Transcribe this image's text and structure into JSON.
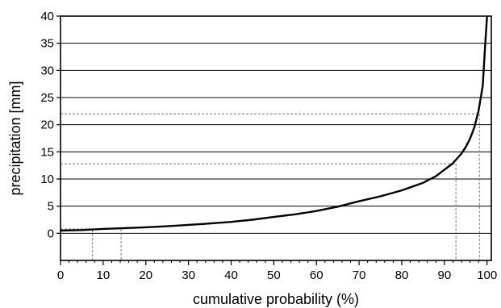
{
  "chart_data": {
    "type": "line",
    "title": "",
    "xlabel": "cumulative probability (%)",
    "ylabel": "precipitation [mm]",
    "xlim": [
      0,
      101
    ],
    "ylim": [
      -5,
      40
    ],
    "x_ticks": [
      0,
      10,
      20,
      30,
      40,
      50,
      60,
      70,
      80,
      90,
      100
    ],
    "y_ticks": [
      0,
      5,
      10,
      15,
      20,
      25,
      30,
      35,
      40
    ],
    "grid": "horizontal",
    "legend": "none",
    "series": [
      {
        "x": [
          0,
          5,
          10,
          15,
          20,
          25,
          30,
          35,
          40,
          45,
          50,
          55,
          60,
          65,
          70,
          75,
          80,
          85,
          88,
          90,
          92,
          93,
          94,
          95,
          96,
          97,
          98,
          99,
          99.5,
          100
        ],
        "y": [
          0.5,
          0.6,
          0.8,
          0.95,
          1.1,
          1.3,
          1.55,
          1.8,
          2.1,
          2.5,
          3.0,
          3.5,
          4.1,
          4.9,
          5.9,
          6.8,
          7.9,
          9.3,
          10.5,
          11.7,
          12.9,
          13.8,
          14.7,
          15.9,
          17.4,
          19.5,
          22.5,
          27.2,
          34.0,
          41.0
        ]
      }
    ],
    "annotations": [
      {
        "style": "dashed",
        "y": 0.8,
        "x": 14.2
      },
      {
        "style": "dashed",
        "y": 0.6,
        "x": 7.5
      },
      {
        "style": "dashed",
        "y": 12.8,
        "x": 92.7
      },
      {
        "style": "dashed",
        "y": 22.0,
        "x": 98.2
      }
    ],
    "colors": {
      "line": "#000000",
      "grid": "#000000",
      "guide": "#777777"
    }
  }
}
